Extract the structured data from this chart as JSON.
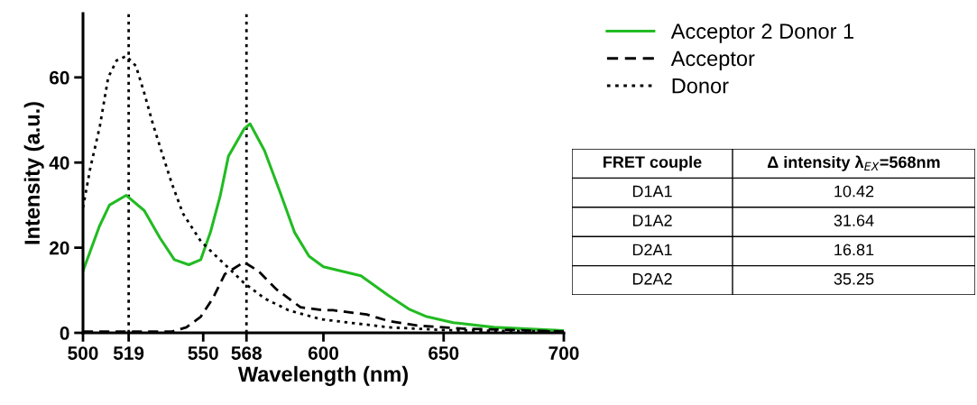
{
  "chart_data": [
    {
      "type": "line",
      "xlabel": "Wavelength (nm)",
      "ylabel": "Intensity (a.u.)",
      "xlim": [
        500,
        700
      ],
      "ylim": [
        0,
        75
      ],
      "xticks": [
        500,
        519,
        550,
        568,
        600,
        650,
        700
      ],
      "yticks": [
        0,
        20,
        40,
        60
      ],
      "grid": false,
      "legend": "top right",
      "marker": "none",
      "ref_lines": [
        {
          "axis": "x",
          "value": 519,
          "color": "#000000",
          "line_style": "dotted"
        },
        {
          "axis": "x",
          "value": 568,
          "color": "#000000",
          "line_style": "dotted"
        }
      ],
      "series": [
        {
          "name": "Acceptor 2 Donor 1",
          "color": "#22bb22",
          "line_style": "solid",
          "x": [
            500,
            506.8,
            511,
            518,
            525.5,
            532,
            538,
            544,
            549,
            553,
            557,
            560.5,
            567,
            569.5,
            575.5,
            582,
            588,
            594,
            600,
            615.6,
            627,
            635.5,
            643,
            654,
            671,
            700
          ],
          "values": [
            14.5,
            25,
            30,
            32.3,
            28.7,
            22.3,
            17.2,
            16,
            17.2,
            23.6,
            32,
            41.5,
            47.9,
            49.1,
            42.8,
            33,
            23.6,
            18,
            15.5,
            13.4,
            8.8,
            5.6,
            3.8,
            2.4,
            1.3,
            0.5
          ]
        },
        {
          "name": "Acceptor",
          "color": "#000000",
          "line_style": "dashed",
          "x": [
            500,
            537,
            543,
            549,
            554,
            559,
            567,
            573,
            580.5,
            590.5,
            600.5,
            604,
            618,
            627,
            639,
            658,
            700
          ],
          "values": [
            0.3,
            0.3,
            1.3,
            3.8,
            8.1,
            13.8,
            16.6,
            14.5,
            10.2,
            6,
            5.3,
            5.3,
            4.3,
            2.8,
            1.7,
            1,
            0.3
          ]
        },
        {
          "name": "Donor",
          "color": "#000000",
          "line_style": "dotted",
          "x": [
            500,
            503,
            507,
            510.5,
            514,
            518,
            522,
            525.5,
            529,
            533,
            537,
            541.6,
            549,
            558,
            567,
            575.5,
            585.5,
            599,
            627,
            652,
            700
          ],
          "values": [
            29.4,
            38.6,
            48.5,
            60,
            64,
            65,
            62.7,
            56.3,
            49.2,
            42,
            35,
            28,
            21.5,
            16.6,
            11.7,
            8.1,
            5.3,
            3.2,
            1.3,
            0.6,
            0.3
          ]
        }
      ]
    },
    {
      "type": "other",
      "annotations": [
        "FRET couple",
        "Δ intensity λ$_{EX}$=568nm",
        "D1A1",
        "10.42",
        "D1A2",
        "31.64",
        "D2A1",
        "16.81",
        "D2A2",
        "35.25"
      ]
    }
  ]
}
